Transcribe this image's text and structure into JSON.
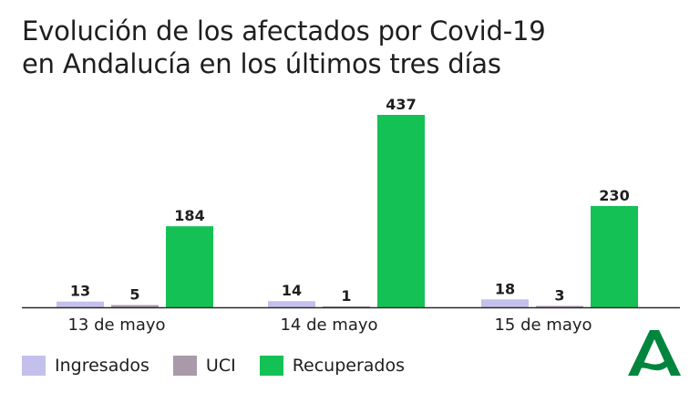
{
  "title_lines": [
    "Evolución de los afectados por Covid-19",
    "en Andalucía en los últimos tres días"
  ],
  "colors": {
    "Ingresados": "#c3c0ec",
    "UCI": "#a99aaa",
    "Recuperados": "#13c155",
    "logo": "#00853e"
  },
  "logo_icon": "junta-de-andalucia-logo-icon",
  "chart_data": {
    "type": "bar",
    "categories": [
      "13 de mayo",
      "14 de mayo",
      "15 de mayo"
    ],
    "series": [
      {
        "name": "Ingresados",
        "values": [
          13,
          14,
          18
        ]
      },
      {
        "name": "UCI",
        "values": [
          5,
          1,
          3
        ]
      },
      {
        "name": "Recuperados",
        "values": [
          184,
          437,
          230
        ]
      }
    ],
    "title": "Evolución de los afectados por Covid-19 en Andalucía en los últimos tres días",
    "xlabel": "",
    "ylabel": "",
    "ylim": [
      0,
      437
    ],
    "grid": false,
    "legend": "bottom-left",
    "data_labels": true
  }
}
